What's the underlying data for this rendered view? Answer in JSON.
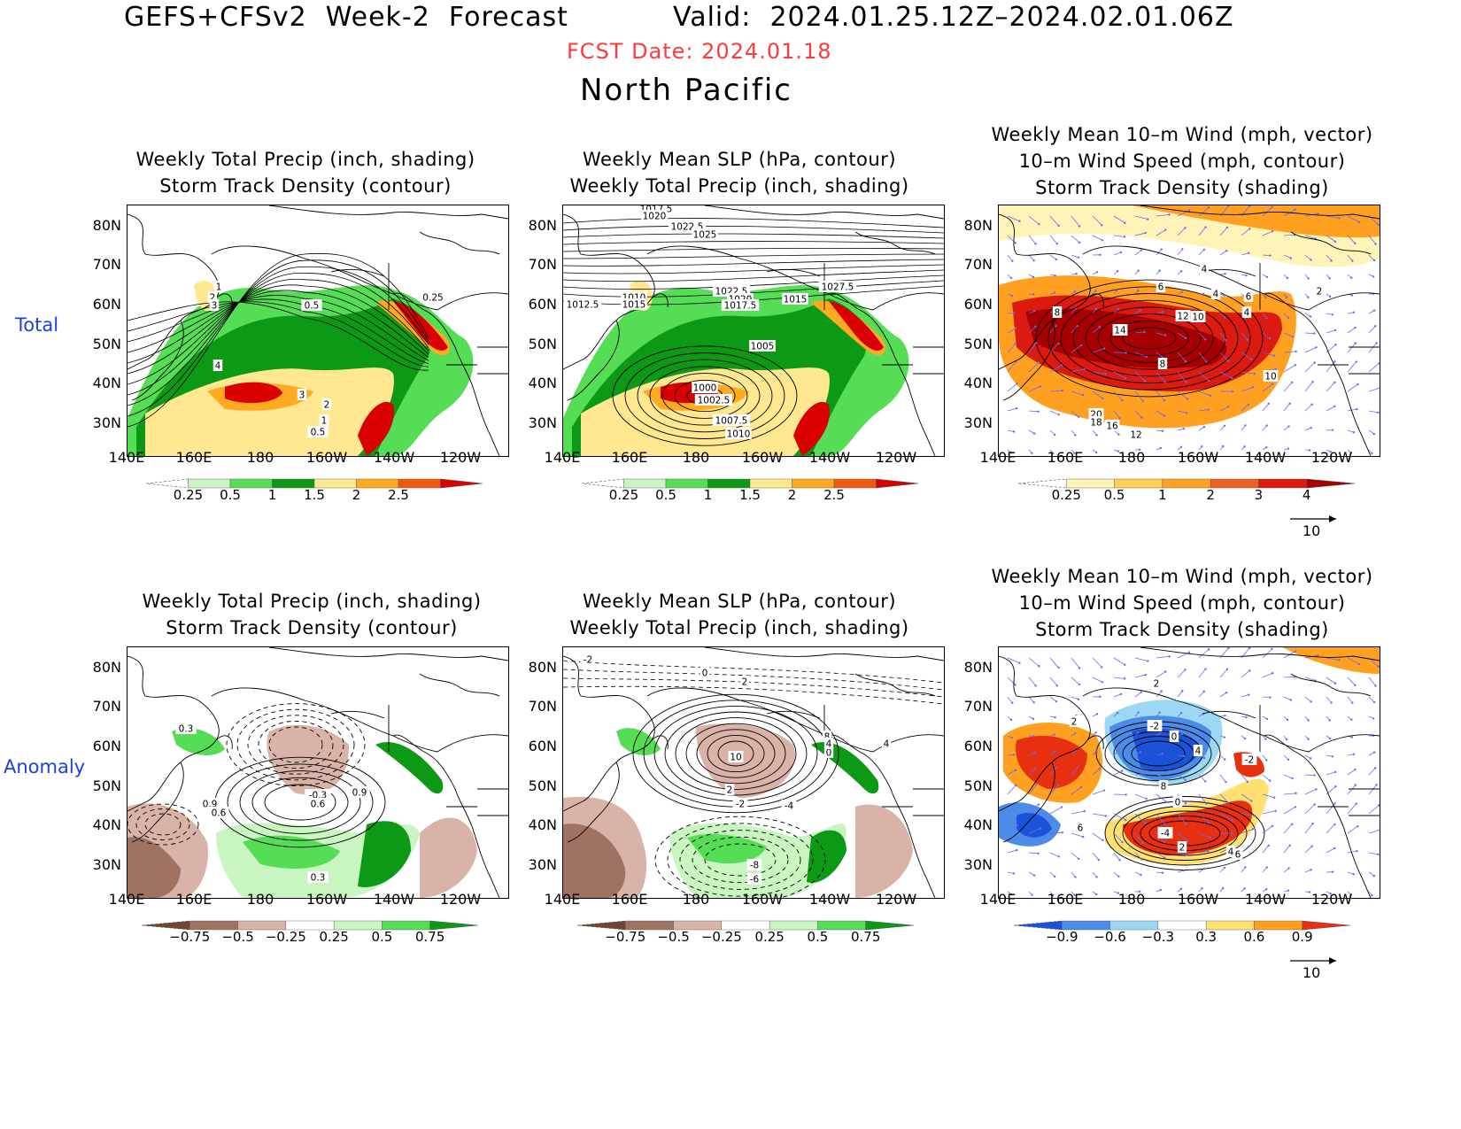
{
  "header": {
    "line1": "GEFS+CFSv2  Week-2  Forecast",
    "valid": "Valid:  2024.01.25.12Z–2024.02.01.06Z",
    "fcst_date": "FCST Date: 2024.01.18",
    "region": "North Pacific"
  },
  "row_labels": {
    "total": "Total",
    "anomaly": "Anomaly"
  },
  "axes": {
    "lat": [
      "80N",
      "70N",
      "60N",
      "50N",
      "40N",
      "30N"
    ],
    "lon": [
      "140E",
      "160E",
      "180",
      "160W",
      "140W",
      "120W"
    ]
  },
  "panels": {
    "precip_total": {
      "title1": "Weekly Total Precip (inch, shading)",
      "title2": "Storm Track Density (contour)",
      "labels": [
        "1",
        "2",
        "3",
        "0.5",
        "0.25",
        "4",
        "3",
        "2",
        "1",
        "0.5"
      ]
    },
    "slp_total": {
      "title1": "Weekly Mean SLP (hPa, contour)",
      "title2": "Weekly Total Precip (inch, shading)",
      "labels": [
        "1017.5",
        "1020",
        "1022.5",
        "1025",
        "1012.5",
        "1010",
        "1015",
        "1022.5",
        "1020",
        "1017.5",
        "1015",
        "1027.5",
        "1005",
        "1000",
        "1002.5",
        "1007.5",
        "1010"
      ]
    },
    "wind_total": {
      "title1": "Weekly Mean 10–m Wind (mph, vector)",
      "title2": "10–m Wind Speed (mph, contour)",
      "title3": "Storm Track Density (shading)",
      "labels": [
        "4",
        "8",
        "6",
        "4",
        "6",
        "4",
        "12",
        "10",
        "14",
        "8",
        "10",
        "2",
        "20",
        "18",
        "16",
        "12"
      ]
    },
    "precip_anom": {
      "title1": "Weekly Total Precip (inch, shading)",
      "title2": "Storm Track Density (contour)",
      "labels": [
        "0.3",
        "0.9",
        "0.6",
        "-0.3",
        "0.6",
        "0.9",
        "0.3"
      ]
    },
    "slp_anom": {
      "title1": "Weekly Mean SLP (hPa, contour)",
      "title2": "Weekly Total Precip (inch, shading)",
      "labels": [
        "-2",
        "0",
        "2",
        "4",
        "10",
        "2",
        "-2",
        "-4",
        "0",
        "-8",
        "-6",
        "8",
        "4"
      ]
    },
    "wind_anom": {
      "title1": "Weekly Mean 10–m Wind (mph, vector)",
      "title2": "10–m Wind Speed (mph, contour)",
      "title3": "Storm Track Density (shading)",
      "labels": [
        "2",
        "6",
        "2",
        "-2",
        "0",
        "4",
        "8",
        "0",
        "-2",
        "6",
        "-4",
        "2",
        "4"
      ]
    }
  },
  "colorbars": {
    "precip_total": {
      "ticks": [
        "0.25",
        "0.5",
        "1",
        "1.5",
        "2",
        "2.5"
      ],
      "colors": [
        "#ffffff",
        "#c8f5c0",
        "#55dd55",
        "#0c9a16",
        "#ffe890",
        "#ffaa20",
        "#f05a10",
        "#d80000"
      ]
    },
    "storm_total": {
      "ticks": [
        "0.25",
        "0.5",
        "1",
        "2",
        "3",
        "4"
      ],
      "colors": [
        "#ffffff",
        "#fff4b8",
        "#ffd050",
        "#ffa020",
        "#f06020",
        "#dc1a10",
        "#a80000"
      ]
    },
    "precip_anom": {
      "ticks": [
        "−0.75",
        "−0.5",
        "−0.25",
        "0.25",
        "0.5",
        "0.75"
      ],
      "colors": [
        "#6e4636",
        "#a07262",
        "#d9b3a8",
        "#ffffff",
        "#c8f5c0",
        "#55dd55",
        "#0c9a16"
      ]
    },
    "storm_anom": {
      "ticks": [
        "−0.9",
        "−0.6",
        "−0.3",
        "0.3",
        "0.6",
        "0.9"
      ],
      "colors": [
        "#1a52d8",
        "#4a8ce8",
        "#9cd8f4",
        "#ffffff",
        "#ffe070",
        "#ffa020",
        "#e83010"
      ]
    }
  },
  "vector_scale": "10"
}
